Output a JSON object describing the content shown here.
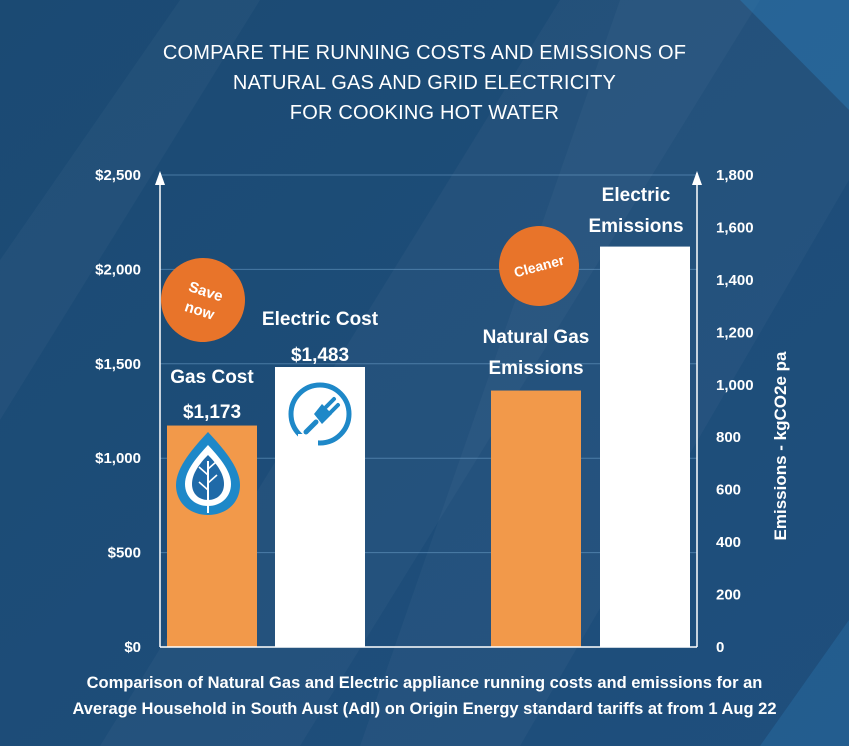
{
  "title_lines": [
    "COMPARE THE RUNNING COSTS AND EMISSIONS OF",
    "NATURAL GAS AND GRID ELECTRICITY",
    "FOR COOKING  HOT WATER"
  ],
  "footer_lines": [
    "Comparison of Natural Gas and Electric appliance running costs and emissions for an",
    "Average Household in South Aust (Adl) on Origin Energy standard tariffs at  from 1 Aug 22"
  ],
  "badges": {
    "save_now_line1": "Save",
    "save_now_line2": "now",
    "cleaner": "Cleaner"
  },
  "icons": {
    "gas": "gas-flame-leaf-icon",
    "electric": "electric-plug-icon"
  },
  "colors": {
    "background": "#1f4e79",
    "gas": "#f2994a",
    "electric": "#ffffff",
    "badge": "#e8742a",
    "gas_icon": "#1e88c8"
  },
  "chart_data": {
    "type": "bar",
    "grid": true,
    "left_axis": {
      "ylim": [
        0,
        2500
      ],
      "ticks": [
        0,
        500,
        1000,
        1500,
        2000,
        2500
      ],
      "tick_labels": [
        "$0",
        "$500",
        "$1,000",
        "$1,500",
        "$2,000",
        "$2,500"
      ]
    },
    "right_axis": {
      "label": "Emissions - kgCO2e  pa",
      "ylim": [
        0,
        1800
      ],
      "ticks": [
        0,
        200,
        400,
        600,
        800,
        1000,
        1200,
        1400,
        1600,
        1800
      ],
      "tick_labels": [
        "0",
        "200",
        "400",
        "600",
        "800",
        "1,000",
        "1,200",
        "1,400",
        "1,600",
        "1,800"
      ]
    },
    "bars": [
      {
        "label": "Gas Cost",
        "value": 1173,
        "value_label": "$1,173",
        "axis": "left",
        "color": "#f2994a"
      },
      {
        "label": "Electric Cost",
        "value": 1483,
        "value_label": "$1,483",
        "axis": "left",
        "color": "#ffffff"
      },
      {
        "label_lines": [
          "Natural Gas",
          "Emissions"
        ],
        "value": 978,
        "axis": "right",
        "color": "#f2994a"
      },
      {
        "label_lines": [
          "Electric",
          "Emissions"
        ],
        "value": 1527,
        "axis": "right",
        "color": "#ffffff"
      }
    ]
  }
}
